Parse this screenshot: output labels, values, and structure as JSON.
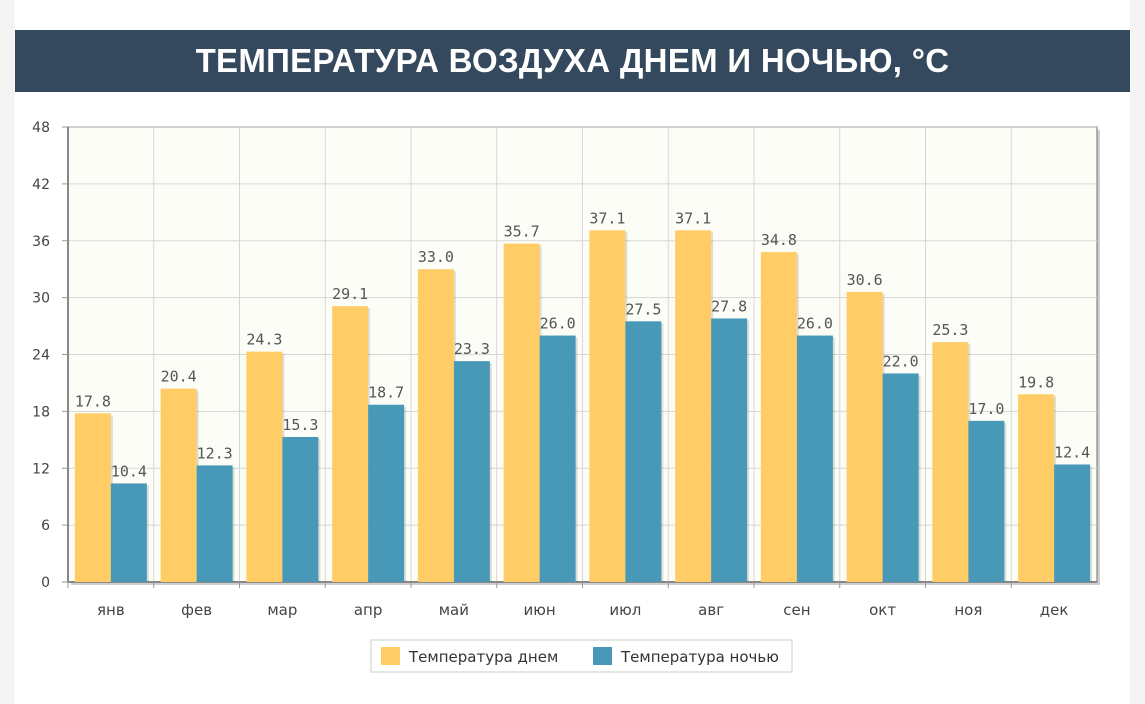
{
  "header": {
    "title": "ТЕМПЕРАТУРА ВОЗДУХА ДНЕМ И НОЧЬЮ, °C"
  },
  "colors": {
    "header_bg": "#34495e",
    "day": "#ffcc66",
    "night": "#4899b8",
    "plot_bg": "#fdfdf8",
    "grid": "#d6d6d6"
  },
  "chart_data": {
    "type": "bar",
    "title": "ТЕМПЕРАТУРА ВОЗДУХА ДНЕМ И НОЧЬЮ, °C",
    "xlabel": "",
    "ylabel": "",
    "ylim": [
      0,
      48
    ],
    "yticks": [
      0,
      6,
      12,
      18,
      24,
      30,
      36,
      42,
      48
    ],
    "grid": true,
    "legend_position": "bottom-center",
    "categories": [
      "янв",
      "фев",
      "мар",
      "апр",
      "май",
      "июн",
      "июл",
      "авг",
      "сен",
      "окт",
      "ноя",
      "дек"
    ],
    "series": [
      {
        "name": "Температура днем",
        "color": "#ffcc66",
        "values": [
          17.8,
          20.4,
          24.3,
          29.1,
          33.0,
          35.7,
          37.1,
          37.1,
          34.8,
          30.6,
          25.3,
          19.8
        ],
        "labels": [
          "17.8",
          "20.4",
          "24.3",
          "29.1",
          "33.0",
          "35.7",
          "37.1",
          "37.1",
          "34.8",
          "30.6",
          "25.3",
          "19.8"
        ]
      },
      {
        "name": "Температура ночью",
        "color": "#4899b8",
        "values": [
          10.4,
          12.3,
          15.3,
          18.7,
          23.3,
          26.0,
          27.5,
          27.8,
          26.0,
          22.0,
          17.0,
          12.4
        ],
        "labels": [
          "10.4",
          "12.3",
          "15.3",
          "18.7",
          "23.3",
          "26.0",
          "27.5",
          "27.8",
          "26.0",
          "22.0",
          "17.0",
          "12.4"
        ]
      }
    ]
  }
}
